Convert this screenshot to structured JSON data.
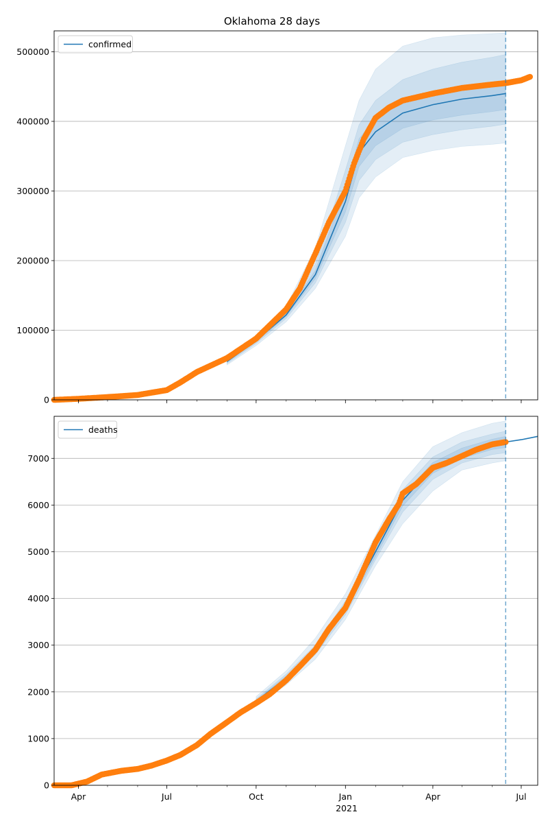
{
  "chart_data": [
    {
      "type": "line",
      "title": "Oklahoma 28 days",
      "ylim": [
        0,
        530000
      ],
      "yticks": [
        0,
        100000,
        200000,
        300000,
        400000,
        500000
      ],
      "ytick_labels": [
        "0",
        "100000",
        "200000",
        "300000",
        "400000",
        "500000"
      ],
      "grid": "horizontal",
      "legend": {
        "position": "top-left",
        "entries": [
          "confirmed"
        ]
      },
      "forecast_start": "2021-06-15",
      "colors": {
        "model": "#1f77b4",
        "observed": "#ff7f0e",
        "band": "#1f77b4"
      },
      "series": [
        {
          "name": "confirmed",
          "kind": "model",
          "x": [
            "2020-09-01",
            "2020-10-01",
            "2020-11-01",
            "2020-12-01",
            "2021-01-01",
            "2021-01-15",
            "2021-02-01",
            "2021-03-01",
            "2021-04-01",
            "2021-05-01",
            "2021-06-01",
            "2021-06-15"
          ],
          "y": [
            55000,
            85000,
            122000,
            180000,
            285000,
            355000,
            385000,
            412000,
            424000,
            432000,
            437000,
            440000
          ],
          "bands": [
            {
              "lower": [
                50000,
                78000,
                112000,
                160000,
                235000,
                290000,
                320000,
                348000,
                358000,
                364000,
                367000,
                369000
              ],
              "upper": [
                60000,
                93000,
                135000,
                218000,
                365000,
                430000,
                475000,
                508000,
                520000,
                524000,
                526000,
                527000
              ]
            },
            {
              "lower": [
                52000,
                81000,
                117000,
                168000,
                255000,
                315000,
                345000,
                370000,
                381000,
                388000,
                393000,
                396000
              ],
              "upper": [
                58000,
                89000,
                128000,
                195000,
                330000,
                395000,
                430000,
                460000,
                475000,
                485000,
                492000,
                496000
              ]
            },
            {
              "lower": [
                54000,
                83000,
                120000,
                174000,
                270000,
                335000,
                365000,
                390000,
                402000,
                409000,
                414000,
                417000
              ],
              "upper": [
                56000,
                87000,
                124000,
                186000,
                305000,
                375000,
                405000,
                430000,
                442000,
                450000,
                455000,
                458000
              ]
            }
          ]
        },
        {
          "name": "observed",
          "kind": "observed",
          "x": [
            "2020-03-07",
            "2020-04-01",
            "2020-05-01",
            "2020-06-01",
            "2020-07-01",
            "2020-07-15",
            "2020-08-01",
            "2020-09-01",
            "2020-10-01",
            "2020-11-01",
            "2020-11-15",
            "2020-12-01",
            "2020-12-15",
            "2021-01-01",
            "2021-01-10",
            "2021-01-20",
            "2021-02-01",
            "2021-02-15",
            "2021-03-01",
            "2021-04-01",
            "2021-05-01",
            "2021-06-01",
            "2021-06-15",
            "2021-07-01",
            "2021-07-10"
          ],
          "y": [
            0,
            1500,
            4000,
            7000,
            14000,
            25000,
            40000,
            60000,
            88000,
            130000,
            160000,
            210000,
            255000,
            300000,
            340000,
            375000,
            405000,
            420000,
            430000,
            440000,
            448000,
            453000,
            455000,
            459000,
            464000
          ]
        }
      ]
    },
    {
      "type": "line",
      "ylim": [
        0,
        7900
      ],
      "yticks": [
        0,
        1000,
        2000,
        3000,
        4000,
        5000,
        6000,
        7000
      ],
      "ytick_labels": [
        "0",
        "1000",
        "2000",
        "3000",
        "4000",
        "5000",
        "6000",
        "7000"
      ],
      "xticks": [
        "2020-04-01",
        "2020-07-01",
        "2020-10-01",
        "2021-01-01",
        "2021-04-01",
        "2021-07-01"
      ],
      "xtick_labels": [
        "Apr",
        "Jul",
        "Oct",
        "Jan",
        "Apr",
        "Jul"
      ],
      "xtick_year_label": "2021",
      "xlim": [
        "2020-03-07",
        "2021-07-18"
      ],
      "grid": "horizontal",
      "legend": {
        "position": "top-left",
        "entries": [
          "deaths"
        ]
      },
      "forecast_start": "2021-06-15",
      "colors": {
        "model": "#1f77b4",
        "observed": "#ff7f0e",
        "band": "#1f77b4"
      },
      "series": [
        {
          "name": "deaths",
          "kind": "model",
          "x": [
            "2020-10-01",
            "2020-11-01",
            "2020-12-01",
            "2021-01-01",
            "2021-02-01",
            "2021-03-01",
            "2021-04-01",
            "2021-05-01",
            "2021-06-01",
            "2021-06-15",
            "2021-07-01",
            "2021-07-18"
          ],
          "y": [
            1800,
            2300,
            2900,
            3800,
            5000,
            6100,
            6800,
            7100,
            7300,
            7350,
            7400,
            7470
          ],
          "bands": [
            {
              "lower": [
                1700,
                2150,
                2700,
                3550,
                4700,
                5600,
                6300,
                6750,
                6900,
                6950,
                null,
                null
              ],
              "upper": [
                1900,
                2450,
                3150,
                4100,
                5350,
                6500,
                7250,
                7550,
                7750,
                7800,
                null,
                null
              ]
            },
            {
              "lower": [
                1750,
                2220,
                2800,
                3650,
                4830,
                5850,
                6550,
                6900,
                7080,
                7120,
                null,
                null
              ],
              "upper": [
                1850,
                2380,
                3000,
                3950,
                5180,
                6330,
                7030,
                7350,
                7520,
                7580,
                null,
                null
              ]
            },
            {
              "lower": [
                1775,
                2260,
                2850,
                3720,
                4900,
                5980,
                6680,
                7000,
                7190,
                7230,
                null,
                null
              ],
              "upper": [
                1825,
                2340,
                2950,
                3880,
                5100,
                6210,
                6910,
                7220,
                7410,
                7470,
                null,
                null
              ]
            }
          ]
        },
        {
          "name": "observed",
          "kind": "observed",
          "x": [
            "2020-03-07",
            "2020-03-25",
            "2020-04-10",
            "2020-04-25",
            "2020-05-15",
            "2020-06-01",
            "2020-06-15",
            "2020-07-01",
            "2020-07-15",
            "2020-08-01",
            "2020-08-15",
            "2020-09-01",
            "2020-09-15",
            "2020-10-01",
            "2020-10-15",
            "2020-11-01",
            "2020-11-15",
            "2020-12-01",
            "2020-12-15",
            "2021-01-01",
            "2021-01-15",
            "2021-02-01",
            "2021-02-15",
            "2021-02-25",
            "2021-03-01",
            "2021-03-15",
            "2021-04-01",
            "2021-04-15",
            "2021-05-01",
            "2021-05-15",
            "2021-06-01",
            "2021-06-15"
          ],
          "y": [
            0,
            0,
            80,
            230,
            310,
            350,
            420,
            530,
            650,
            860,
            1100,
            1350,
            1560,
            1760,
            1950,
            2250,
            2550,
            2900,
            3350,
            3800,
            4400,
            5200,
            5700,
            6020,
            6250,
            6450,
            6800,
            6900,
            7050,
            7180,
            7300,
            7350
          ]
        }
      ]
    }
  ]
}
